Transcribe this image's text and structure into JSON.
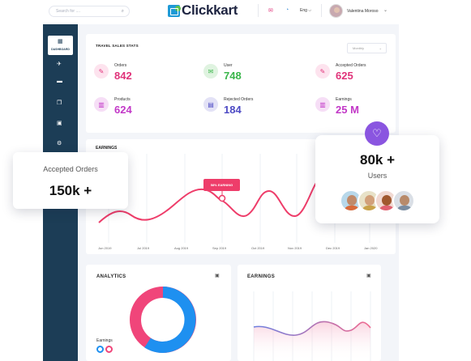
{
  "header": {
    "search_placeholder": "Search for ....",
    "logo_text": "Clickkart",
    "language": "Eng",
    "user_name": "Valentina Moroso"
  },
  "sidebar": {
    "active_label": "DASHBOARD",
    "items": [
      "dashboard-icon",
      "plane-icon",
      "bed-icon",
      "copy-icon",
      "money-icon",
      "gear-icon"
    ]
  },
  "stats": {
    "title": "TRAVEL SALES STATS",
    "period": "Monthly",
    "items": [
      {
        "label": "Orders",
        "value": "842",
        "color": "#e0337a",
        "bg": "#fde3ee",
        "icon": "ticket-icon"
      },
      {
        "label": "User",
        "value": "748",
        "color": "#39b54a",
        "bg": "#dff3e0",
        "icon": "user-icon"
      },
      {
        "label": "Accepted Orders",
        "value": "625",
        "color": "#e0337a",
        "bg": "#fde3ee",
        "icon": "ticket-icon"
      },
      {
        "label": "Products",
        "value": "624",
        "color": "#c238c7",
        "bg": "#f6def6",
        "icon": "bar-chart-icon"
      },
      {
        "label": "Rejected Orders",
        "value": "184",
        "color": "#4d4ac4",
        "bg": "#e3e2f6",
        "icon": "chart-icon"
      },
      {
        "label": "Earnings",
        "value": "25 M",
        "color": "#c238c7",
        "bg": "#f6def6",
        "icon": "bar-chart-icon"
      }
    ]
  },
  "earnings_chart": {
    "title": "EARNINGS",
    "badge": "58% EARNING",
    "months": [
      "Jun 2019",
      "Jul 2019",
      "Aug 2019",
      "Sep 2019",
      "Oct 2019",
      "Nov 2019",
      "Dec 2019",
      "Jan 2020"
    ],
    "line_color": "#ee3d6a"
  },
  "float_accepted": {
    "label": "Accepted Orders",
    "value": "150k +"
  },
  "float_users": {
    "value": "80k +",
    "label": "Users"
  },
  "analytics": {
    "title": "ANALYTICS",
    "legend_label": "Earnings",
    "colors": [
      "#1e90f0",
      "#f0457a"
    ]
  },
  "earnings_small": {
    "title": "EARNINGS"
  }
}
